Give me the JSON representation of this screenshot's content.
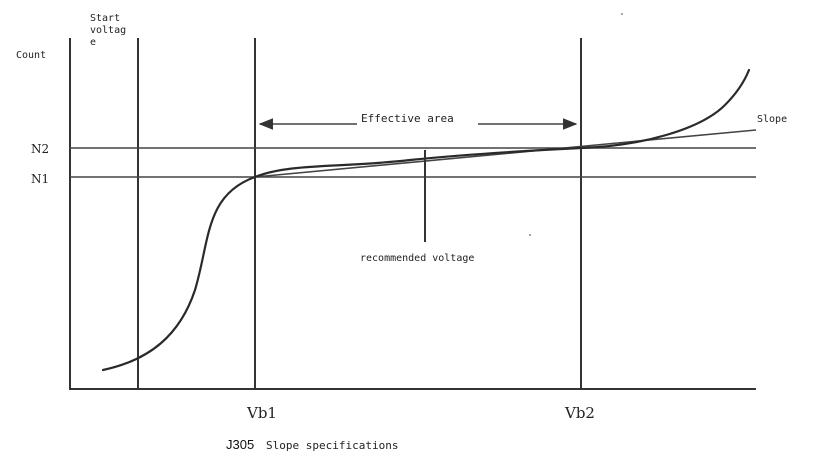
{
  "labels": {
    "y_axis": "Count",
    "start_voltage_line1": "Start",
    "start_voltage_line2": "voltag",
    "start_voltage_line3": "e",
    "n2": "N2",
    "n1": "N1",
    "effective_area": "Effective area",
    "slope": "Slope",
    "recommended_voltage": "recommended voltage",
    "vb1": "Vb1",
    "vb2": "Vb2",
    "caption_id": "J305",
    "caption_text": "Slope specifications"
  }
}
